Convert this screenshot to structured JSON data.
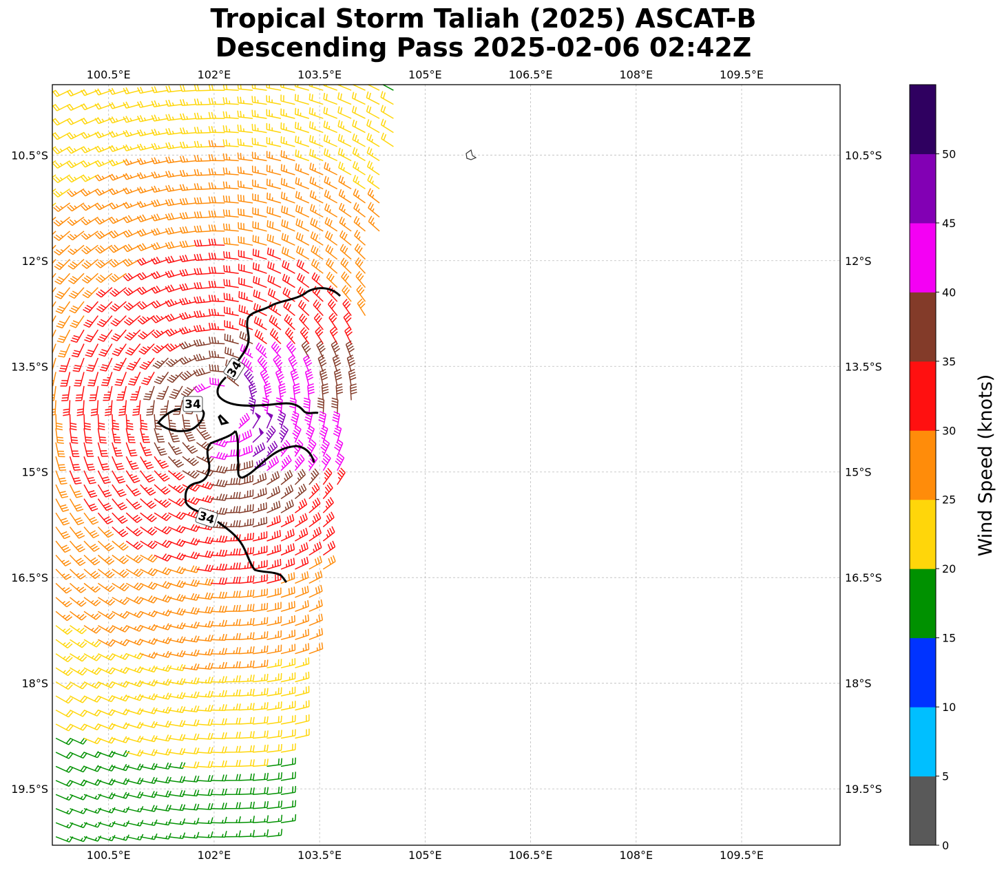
{
  "title": {
    "line1": "Tropical Storm Taliah (2025) ASCAT-B",
    "line2": "Descending Pass 2025-02-06 02:42Z"
  },
  "map": {
    "lon_range": [
      99.7,
      110.9
    ],
    "lat_range": [
      -20.3,
      -9.5
    ],
    "lon_ticks": [
      100.5,
      102,
      103.5,
      105,
      106.5,
      108,
      109.5
    ],
    "lon_tick_labels": [
      "100.5°E",
      "102°E",
      "103.5°E",
      "105°E",
      "106.5°E",
      "108°E",
      "109.5°E"
    ],
    "lat_ticks": [
      -10.5,
      -12,
      -13.5,
      -15,
      -16.5,
      -18,
      -19.5
    ],
    "lat_tick_labels": [
      "10.5°S",
      "12°S",
      "13.5°S",
      "15°S",
      "16.5°S",
      "18°S",
      "19.5°S"
    ],
    "grid": true,
    "grid_style": "dashed",
    "storm_center": {
      "lon": 102.1,
      "lat": -14.1
    },
    "swath": {
      "west_lon": 99.7,
      "top_east_lon": 104.7,
      "bottom_east_lon": 102.9
    },
    "contour_label": "34",
    "contour_labels_count": 3,
    "island": {
      "name_visible": false,
      "lon": 105.65,
      "lat": -10.5
    }
  },
  "colorbar": {
    "label": "Wind Speed (knots)",
    "tick_values": [
      0,
      5,
      10,
      15,
      20,
      25,
      30,
      35,
      40,
      45,
      50
    ],
    "tick_labels": [
      "0",
      "5",
      "10",
      "15",
      "20",
      "25",
      "30",
      "35",
      "40",
      "45",
      "50"
    ],
    "bins": [
      {
        "min": 0,
        "max": 5,
        "color": "#595959"
      },
      {
        "min": 5,
        "max": 10,
        "color": "#00bfff"
      },
      {
        "min": 10,
        "max": 15,
        "color": "#0033ff"
      },
      {
        "min": 15,
        "max": 20,
        "color": "#009100"
      },
      {
        "min": 20,
        "max": 25,
        "color": "#ffd60a"
      },
      {
        "min": 25,
        "max": 30,
        "color": "#ff8c0a"
      },
      {
        "min": 30,
        "max": 35,
        "color": "#ff1010"
      },
      {
        "min": 35,
        "max": 40,
        "color": "#833b29"
      },
      {
        "min": 40,
        "max": 45,
        "color": "#f400f4"
      },
      {
        "min": 45,
        "max": 50,
        "color": "#8200b4"
      },
      {
        "min": 50,
        "max": 55,
        "color": "#2f0060"
      }
    ]
  }
}
